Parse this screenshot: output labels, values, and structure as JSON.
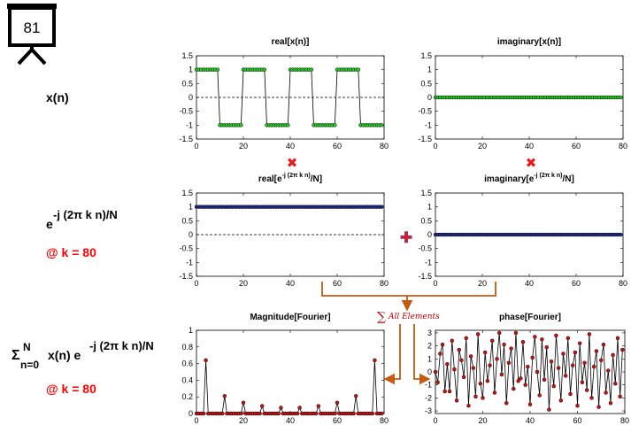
{
  "slide_number": "81",
  "labels": {
    "xn": "x(n)",
    "kernel_base": "e",
    "kernel_exp": "-j (2π k n)/N",
    "at_k": "@ k = 80",
    "sum_sigma": "Σ",
    "sum_upper": "N",
    "sum_lower": "n=0",
    "sum_body": "x(n) e",
    "sum_exp": "-j (2π k n)/N",
    "at_k2": "@ k = 80"
  },
  "operators": {
    "multiply": "✖",
    "add": "✚"
  },
  "annotation": {
    "sum_symbol": "∑",
    "sum_text": "All Elements"
  },
  "colors": {
    "green_marker": "#22cc22",
    "blue_marker": "#1c2a8c",
    "red_marker": "#cc1111",
    "arrow": "#c55a11",
    "operator_red": "#e81818",
    "operator_blue": "#3a4fc7"
  },
  "chart_data": [
    {
      "type": "line",
      "title": "real[x(n)]",
      "x": {
        "start": 0,
        "end": 79,
        "step": 1
      },
      "y_rule": {
        "kind": "square",
        "period": 20,
        "high_until": 10,
        "high": 1,
        "low": -1
      },
      "xlim": [
        0,
        80
      ],
      "ylim": [
        -1.5,
        1.5
      ],
      "xticks": [
        "0",
        "20",
        "40",
        "60",
        "80"
      ],
      "yticks": [
        "1.5",
        "1",
        "0.5",
        "0",
        "-0.5",
        "-1",
        "-1.5"
      ],
      "marker_color": "#22cc22",
      "zero_line": true
    },
    {
      "type": "line",
      "title": "imaginary[x(n)]",
      "x": {
        "start": 0,
        "end": 79,
        "step": 1
      },
      "y_rule": {
        "kind": "constant",
        "value": 0
      },
      "xlim": [
        0,
        80
      ],
      "ylim": [
        -1.5,
        1.5
      ],
      "xticks": [
        "0",
        "20",
        "40",
        "60",
        "80"
      ],
      "yticks": [
        "1.5",
        "1",
        "0.5",
        "0",
        "-0.5",
        "-1",
        "-1.5"
      ],
      "marker_color": "#22cc22",
      "zero_line": true
    },
    {
      "type": "line",
      "title_base": "real[e",
      "title_exp": "-j (2π k n)",
      "title_tail": "/N]",
      "x": {
        "start": 0,
        "end": 79,
        "step": 1
      },
      "y_rule": {
        "kind": "constant",
        "value": 1
      },
      "xlim": [
        0,
        80
      ],
      "ylim": [
        -1.5,
        1.5
      ],
      "xticks": [
        "0",
        "20",
        "40",
        "60",
        "80"
      ],
      "yticks": [
        "1.5",
        "1",
        "0.5",
        "0",
        "-0.5",
        "-1",
        "-1.5"
      ],
      "marker_color": "#1c2a8c",
      "zero_line": true
    },
    {
      "type": "line",
      "title_base": "imaginary[e",
      "title_exp": "-j (2π k n)",
      "title_tail": "/N]",
      "x": {
        "start": 0,
        "end": 79,
        "step": 1
      },
      "y_rule": {
        "kind": "constant",
        "value": 0
      },
      "xlim": [
        0,
        80
      ],
      "ylim": [
        -1.5,
        1.5
      ],
      "xticks": [
        "0",
        "20",
        "40",
        "60",
        "80"
      ],
      "yticks": [
        "1.5",
        "1",
        "0.5",
        "0",
        "-0.5",
        "-1",
        "-1.5"
      ],
      "marker_color": "#1c2a8c",
      "zero_line": true
    },
    {
      "type": "line",
      "title": "Magnitude[Fourier]",
      "x": {
        "start": 0,
        "end": 79,
        "step": 1
      },
      "y_rule": {
        "kind": "sparse",
        "default": 0,
        "points": [
          [
            4,
            0.64
          ],
          [
            12,
            0.21
          ],
          [
            20,
            0.13
          ],
          [
            28,
            0.09
          ],
          [
            36,
            0.07
          ],
          [
            44,
            0.07
          ],
          [
            52,
            0.09
          ],
          [
            60,
            0.13
          ],
          [
            68,
            0.21
          ],
          [
            76,
            0.64
          ]
        ]
      },
      "xlim": [
        0,
        80
      ],
      "ylim": [
        0,
        1
      ],
      "xticks": [
        "0",
        "20",
        "40",
        "60",
        "80"
      ],
      "yticks": [
        "1",
        "0.8",
        "0.6",
        "0.4",
        "0.2",
        "0"
      ],
      "marker_color": "#cc1111",
      "zero_line": false
    },
    {
      "type": "line",
      "title": "phase[Fourier]",
      "x": {
        "start": 0,
        "end": 79,
        "step": 1
      },
      "y": [
        0.0,
        -0.8,
        1.4,
        2.1,
        -1.5,
        0.6,
        -1.5,
        2.4,
        0.2,
        -2.2,
        1.7,
        0.9,
        -0.4,
        2.6,
        -2.6,
        1.2,
        0.3,
        -1.9,
        2.9,
        -0.9,
        -2.0,
        1.5,
        -0.7,
        0.5,
        2.4,
        -1.6,
        1.0,
        3.0,
        -0.2,
        2.1,
        -2.4,
        0.7,
        1.8,
        -1.3,
        3.0,
        -0.7,
        -0.5,
        2.3,
        -1.0,
        0.4,
        -2.5,
        1.1,
        2.7,
        0.0,
        -1.8,
        2.5,
        -0.6,
        1.9,
        -2.9,
        0.8,
        -1.1,
        2.8,
        0.3,
        -2.2,
        1.4,
        -0.3,
        2.6,
        -1.7,
        0.5,
        1.5,
        -2.6,
        2.2,
        -0.8,
        0.7,
        -1.4,
        2.9,
        -2.0,
        0.4,
        1.6,
        -2.7,
        0.9,
        2.1,
        -1.6,
        0.1,
        -2.4,
        1.3,
        -0.9,
        2.6,
        -1.9,
        1.7
      ],
      "xlim": [
        0,
        80
      ],
      "ylim": [
        -3.2,
        3.2
      ],
      "xticks": [
        "0",
        "20",
        "40",
        "60",
        "80"
      ],
      "yticks": [
        "3",
        "2",
        "1",
        "0",
        "-1",
        "-2",
        "-3"
      ],
      "marker_color": "#cc1111",
      "zero_line": false
    }
  ]
}
